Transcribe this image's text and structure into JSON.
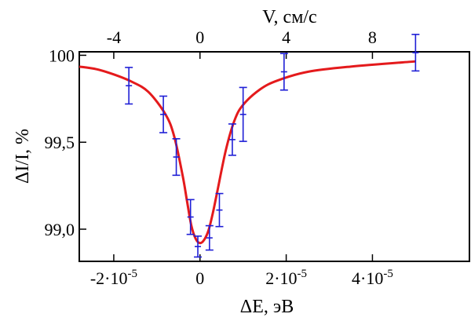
{
  "chart_data": {
    "type": "scatter",
    "xlabel": "ΔE, эВ",
    "ylabel": "ΔI/I, %",
    "x2label": "V, см/с",
    "xlim": [
      -2.8e-05,
      6.25e-05
    ],
    "ylim": [
      98.815,
      100.02
    ],
    "x_ticks": [
      {
        "value": -2e-05,
        "label": "-2·10"
      },
      {
        "value": 0,
        "label": "0"
      },
      {
        "value": 2e-05,
        "label": "2·10"
      },
      {
        "value": 4e-05,
        "label": "4·10"
      }
    ],
    "x_tick_exponent": "-5",
    "y_ticks": [
      {
        "value": 99.0,
        "label": "99,0"
      },
      {
        "value": 99.5,
        "label": "99,5"
      },
      {
        "value": 100.0,
        "label": "100"
      }
    ],
    "v_ticks": [
      {
        "value": -4,
        "label": "-4"
      },
      {
        "value": 0,
        "label": "0"
      },
      {
        "value": 4,
        "label": "4"
      },
      {
        "value": 8,
        "label": "8"
      }
    ],
    "v_per_energy": 200000,
    "series": [
      {
        "kind": "points",
        "color": "#1f1fd6",
        "points": [
          {
            "x": -1.65e-05,
            "y": 99.825,
            "err": 0.105
          },
          {
            "x": -8.5e-06,
            "y": 99.66,
            "err": 0.105
          },
          {
            "x": -5.5e-06,
            "y": 99.415,
            "err": 0.105
          },
          {
            "x": -2.2e-06,
            "y": 99.07,
            "err": 0.1
          },
          {
            "x": -5e-07,
            "y": 98.9,
            "err": 0.06
          },
          {
            "x": 2.2e-06,
            "y": 98.95,
            "err": 0.07
          },
          {
            "x": 4.5e-06,
            "y": 99.11,
            "err": 0.095
          },
          {
            "x": 7.5e-06,
            "y": 99.515,
            "err": 0.09
          },
          {
            "x": 1e-05,
            "y": 99.66,
            "err": 0.155
          },
          {
            "x": 1.95e-05,
            "y": 99.905,
            "err": 0.105
          },
          {
            "x": 5e-05,
            "y": 100.015,
            "err": 0.105
          }
        ]
      },
      {
        "kind": "fit",
        "color": "#e41a1c",
        "x": [
          -2.8e-05,
          -2.4e-05,
          -2e-05,
          -1.6e-05,
          -1.2e-05,
          -8e-06,
          -6e-06,
          -4e-06,
          -3e-06,
          -2e-06,
          -1e-06,
          0,
          1e-06,
          2e-06,
          3e-06,
          4e-06,
          6e-06,
          8e-06,
          1e-05,
          1.4e-05,
          1.8e-05,
          2.5e-05,
          3.5e-05,
          5e-05
        ],
        "y": [
          99.935,
          99.92,
          99.89,
          99.85,
          99.79,
          99.66,
          99.535,
          99.305,
          99.16,
          99.02,
          98.945,
          98.92,
          98.94,
          98.995,
          99.095,
          99.215,
          99.455,
          99.625,
          99.715,
          99.805,
          99.855,
          99.905,
          99.935,
          99.965
        ]
      }
    ]
  }
}
